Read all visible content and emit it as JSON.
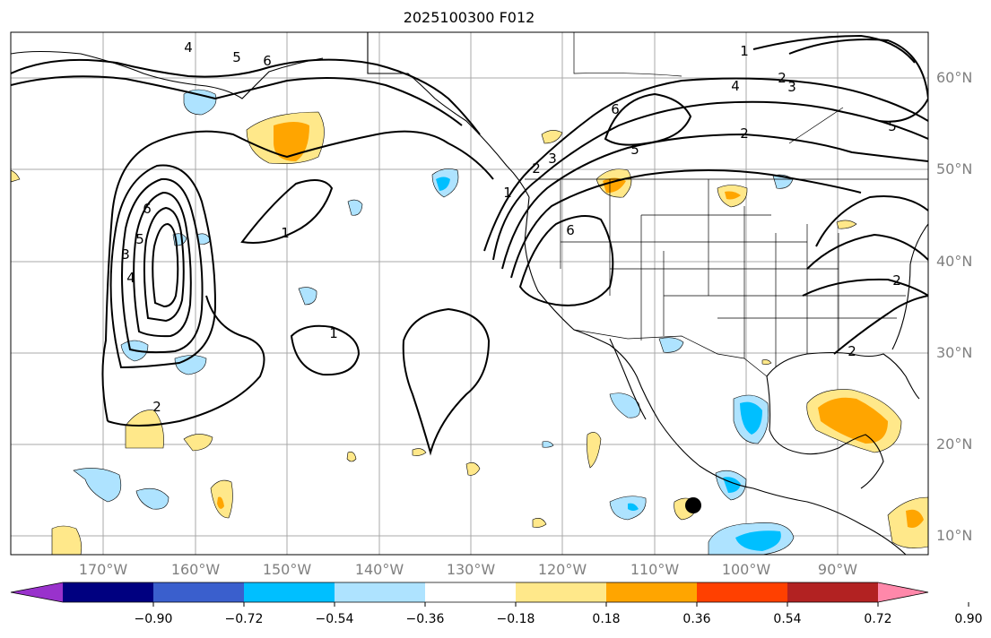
{
  "title": "2025100300 F012",
  "lat_labels": [
    "60°N",
    "50°N",
    "40°N",
    "30°N",
    "20°N",
    "10°N"
  ],
  "lon_labels": [
    "170°W",
    "160°W",
    "150°W",
    "140°W",
    "130°W",
    "120°W",
    "110°W",
    "100°W",
    "90°W"
  ],
  "contour_labels": [
    "1",
    "2",
    "3",
    "4",
    "5",
    "6"
  ],
  "colorbar": {
    "tick_labels": [
      "−0.90",
      "−0.72",
      "−0.54",
      "−0.36",
      "−0.18",
      "0.18",
      "0.36",
      "0.54",
      "0.72",
      "0.90"
    ],
    "colors": [
      "#9932cc",
      "#000080",
      "#3a5fcd",
      "#00bfff",
      "#aee3ff",
      "#ffffff",
      "#ffe88a",
      "#ffa500",
      "#ff4000",
      "#b22222",
      "#ff88aa"
    ]
  },
  "colors": {
    "grid": "#a9a9a9",
    "contour": "#000000",
    "coast": "#000000",
    "tick_text": "#808080"
  },
  "marker": "black-dot"
}
